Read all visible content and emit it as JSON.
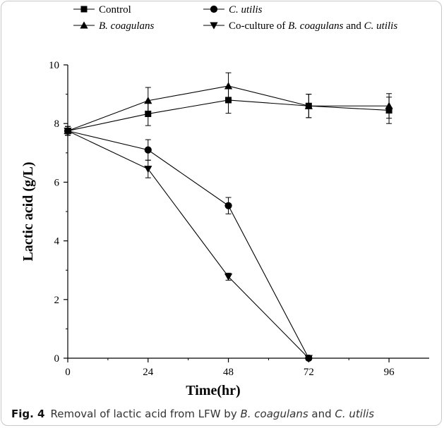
{
  "caption": {
    "label": "Fig. 4",
    "text_before": "Removal of lactic acid from LFW by ",
    "species_1": "B. coagulans",
    "text_mid": " and ",
    "species_2": "C. utilis"
  },
  "chart_data": {
    "type": "line",
    "title": "",
    "xlabel": "Time(hr)",
    "ylabel": "Lactic acid (g/L)",
    "xlim": [
      0,
      108
    ],
    "ylim": [
      0,
      10
    ],
    "xticks": [
      0,
      24,
      48,
      72,
      96
    ],
    "yticks": [
      0,
      2,
      4,
      6,
      8,
      10
    ],
    "grid": false,
    "legend_position": "top-left",
    "series": [
      {
        "name": "Control",
        "marker": "square",
        "color": "#000000",
        "x": [
          0,
          24,
          48,
          72,
          96
        ],
        "y": [
          7.75,
          8.33,
          8.8,
          8.6,
          8.45
        ],
        "error": [
          0.15,
          0.4,
          0.45,
          0.4,
          0.45
        ]
      },
      {
        "name": "C. utilis",
        "marker": "circle",
        "color": "#000000",
        "x": [
          0,
          24,
          48,
          72
        ],
        "y": [
          7.75,
          7.1,
          5.2,
          0.0
        ],
        "error": [
          0.15,
          0.35,
          0.28,
          0.0
        ]
      },
      {
        "name": "B. coagulans",
        "marker": "triangle-up",
        "color": "#000000",
        "x": [
          0,
          24,
          48,
          72,
          96
        ],
        "y": [
          7.75,
          8.78,
          9.28,
          8.6,
          8.6
        ],
        "error": [
          0.15,
          0.45,
          0.45,
          0.4,
          0.42
        ]
      },
      {
        "name": "Co-culture of B. coagulans and C. utilis",
        "marker": "triangle-down",
        "color": "#000000",
        "x": [
          0,
          24,
          48,
          72
        ],
        "y": [
          7.75,
          6.45,
          2.78,
          0.0
        ],
        "error": [
          0.15,
          0.3,
          0.12,
          0.0
        ]
      }
    ]
  }
}
